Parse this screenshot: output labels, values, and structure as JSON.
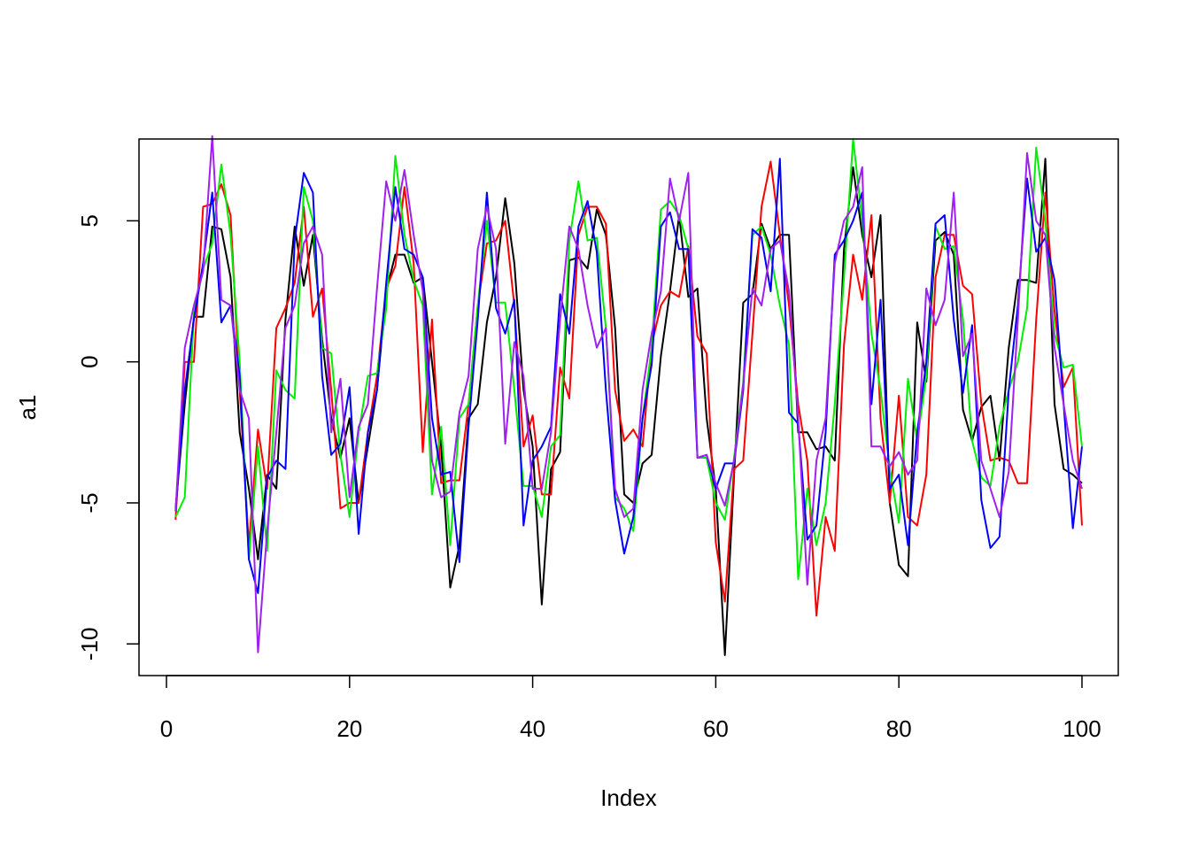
{
  "chart_data": {
    "type": "line",
    "xlabel": "Index",
    "ylabel": "a1",
    "xlim": [
      1,
      100
    ],
    "ylim": [
      -10.4,
      7.9
    ],
    "xticks": [
      0,
      20,
      40,
      60,
      80,
      100
    ],
    "yticks": [
      -10,
      -5,
      0,
      5
    ],
    "grid": false,
    "series": [
      {
        "color": "#000000",
        "values": [
          -5.2,
          -1.5,
          1.6,
          1.6,
          4.8,
          4.7,
          3.0,
          -2.5,
          -4.5,
          -7.0,
          -4.0,
          -4.5,
          1.5,
          4.8,
          2.7,
          4.5,
          0.8,
          -2.0,
          -3.4,
          -2.0,
          -5.0,
          -3.0,
          -1.0,
          2.5,
          3.8,
          3.8,
          2.8,
          3.0,
          0.0,
          -3.0,
          -8.0,
          -6.5,
          -2.0,
          -1.5,
          1.4,
          3.0,
          5.8,
          3.5,
          -1.0,
          -3.0,
          -8.6,
          -3.8,
          -3.2,
          3.6,
          3.7,
          3.3,
          5.4,
          4.5,
          1.2,
          -4.7,
          -5.0,
          -3.6,
          -3.3,
          0.2,
          2.5,
          5.2,
          2.3,
          2.6,
          -2.0,
          -4.5,
          -10.4,
          -4.0,
          2.1,
          2.4,
          4.9,
          4.0,
          4.5,
          4.5,
          -2.5,
          -2.5,
          -3.1,
          -3.0,
          -3.5,
          4.0,
          6.9,
          4.5,
          3.0,
          5.2,
          -5.0,
          -7.2,
          -7.6,
          1.4,
          -0.7,
          4.3,
          4.6,
          3.8,
          -1.7,
          -2.8,
          -1.6,
          -1.2,
          -3.5,
          0.5,
          2.9,
          2.9,
          2.8,
          7.2,
          -1.5,
          -3.8,
          -4.0,
          -4.3
        ]
      },
      {
        "color": "#ff0000",
        "values": [
          -5.6,
          0.0,
          0.0,
          5.5,
          5.6,
          6.3,
          5.2,
          -1.0,
          -6.5,
          -2.4,
          -4.5,
          1.2,
          1.9,
          2.8,
          5.5,
          1.6,
          2.6,
          -1.0,
          -5.2,
          -5.0,
          -5.0,
          -2.5,
          -0.5,
          2.6,
          3.4,
          6.2,
          3.5,
          -3.2,
          1.5,
          -4.3,
          -4.2,
          -4.2,
          -1.5,
          2.0,
          4.2,
          4.3,
          5.0,
          2.0,
          -3.0,
          -1.9,
          -4.7,
          -4.7,
          -0.2,
          -1.3,
          4.5,
          5.5,
          5.5,
          4.9,
          -1.0,
          -2.8,
          -2.4,
          -3.0,
          0.6,
          2.0,
          2.5,
          2.3,
          4.1,
          0.9,
          0.3,
          -6.4,
          -8.5,
          -3.8,
          -3.5,
          1.0,
          5.5,
          7.1,
          4.5,
          2.0,
          -1.5,
          -3.5,
          -9.0,
          -5.5,
          -6.7,
          0.6,
          3.8,
          2.2,
          5.2,
          -2.0,
          -5.0,
          -1.2,
          -5.5,
          -5.8,
          -4.0,
          3.0,
          4.5,
          4.5,
          2.7,
          2.4,
          -1.5,
          -3.5,
          -3.4,
          -3.5,
          -4.3,
          -4.3,
          1.5,
          6.0,
          1.8,
          -0.9,
          -0.2,
          -5.8
        ]
      },
      {
        "color": "#00ee00",
        "values": [
          -5.5,
          -4.8,
          1.7,
          3.3,
          4.2,
          7.0,
          4.5,
          0.0,
          -7.0,
          -3.0,
          -6.7,
          -0.3,
          -1.0,
          -1.3,
          6.2,
          5.0,
          0.5,
          0.3,
          -3.3,
          -5.5,
          -2.5,
          -0.5,
          -0.4,
          1.9,
          7.3,
          4.5,
          2.9,
          2.0,
          -4.7,
          -2.3,
          -6.5,
          -2.0,
          -1.5,
          2.0,
          5.0,
          2.1,
          2.1,
          -1.0,
          -4.4,
          -4.4,
          -5.5,
          -3.0,
          -2.6,
          4.3,
          6.4,
          4.3,
          4.4,
          1.2,
          -4.8,
          -5.2,
          -6.0,
          -2.0,
          0.5,
          5.4,
          5.7,
          5.2,
          4.0,
          -3.4,
          -3.4,
          -5.0,
          -5.6,
          -3.4,
          -0.7,
          4.5,
          4.8,
          3.8,
          2.0,
          0.6,
          -7.7,
          -4.5,
          -6.5,
          -5.0,
          -1.5,
          3.0,
          7.9,
          5.0,
          1.0,
          -1.0,
          -3.8,
          -5.7,
          -0.6,
          -2.8,
          -0.5,
          4.8,
          4.0,
          4.1,
          1.5,
          -2.8,
          -4.1,
          -4.4,
          -2.3,
          -1.0,
          0.0,
          1.9,
          7.6,
          5.0,
          1.0,
          -0.2,
          -0.1,
          -3.0
        ]
      },
      {
        "color": "#0000ff",
        "values": [
          -5.3,
          -1.0,
          1.5,
          3.5,
          6.0,
          1.4,
          2.0,
          -0.5,
          -7.0,
          -8.2,
          -4.1,
          -3.5,
          -3.8,
          4.3,
          6.7,
          6.0,
          -0.5,
          -3.3,
          -2.9,
          -0.9,
          -6.1,
          -2.5,
          -1.0,
          2.8,
          6.2,
          4.0,
          3.8,
          3.0,
          -2.0,
          -4.0,
          -3.9,
          -7.1,
          -2.3,
          1.5,
          6.0,
          1.9,
          1.0,
          2.2,
          -5.8,
          -3.5,
          -3.0,
          -2.3,
          2.4,
          1.0,
          4.8,
          5.7,
          3.9,
          -1.0,
          -4.9,
          -6.8,
          -5.5,
          -2.0,
          -0.1,
          4.8,
          5.3,
          4.0,
          4.0,
          -3.4,
          -3.3,
          -4.5,
          -3.6,
          -3.6,
          -1.0,
          4.7,
          4.4,
          2.5,
          7.2,
          -1.8,
          -2.2,
          -6.3,
          -5.8,
          -2.5,
          3.8,
          4.3,
          5.0,
          6.0,
          -1.5,
          2.2,
          -4.5,
          -4.0,
          -6.5,
          -2.5,
          0.0,
          4.9,
          5.2,
          1.5,
          -1.1,
          1.3,
          -4.9,
          -6.6,
          -6.2,
          -1.0,
          2.0,
          6.5,
          3.9,
          4.4,
          2.9,
          -1.5,
          -5.9,
          -3.0
        ]
      },
      {
        "color": "#a020f0",
        "values": [
          -5.3,
          0.5,
          2.0,
          3.2,
          8.0,
          2.2,
          2.0,
          -1.0,
          -2.0,
          -10.3,
          -6.0,
          -2.5,
          1.2,
          2.0,
          4.2,
          4.8,
          3.8,
          -2.5,
          -0.6,
          -4.8,
          -2.3,
          -1.5,
          2.6,
          6.4,
          5.0,
          6.8,
          4.5,
          2.5,
          -3.5,
          -4.8,
          -4.6,
          -1.8,
          -0.5,
          4.0,
          5.5,
          4.0,
          -2.9,
          0.7,
          -0.5,
          -4.5,
          -4.5,
          -2.5,
          1.5,
          4.8,
          4.0,
          2.0,
          0.5,
          1.2,
          -4.5,
          -5.5,
          -5.2,
          -1.0,
          1.0,
          2.5,
          6.5,
          5.0,
          6.7,
          -3.4,
          -3.3,
          -4.3,
          -5.1,
          -3.5,
          -0.8,
          2.6,
          2.0,
          4.0,
          4.3,
          2.5,
          -2.0,
          -7.9,
          -3.5,
          -2.0,
          3.5,
          5.0,
          5.5,
          6.9,
          -3.0,
          -3.0,
          -3.7,
          -3.2,
          -4.0,
          -3.5,
          2.6,
          1.3,
          2.2,
          6.0,
          0.2,
          1.0,
          -3.5,
          -4.5,
          -5.5,
          -3.9,
          1.5,
          7.4,
          5.0,
          4.5,
          0.5,
          -1.5,
          -3.5,
          -4.5
        ]
      }
    ]
  }
}
